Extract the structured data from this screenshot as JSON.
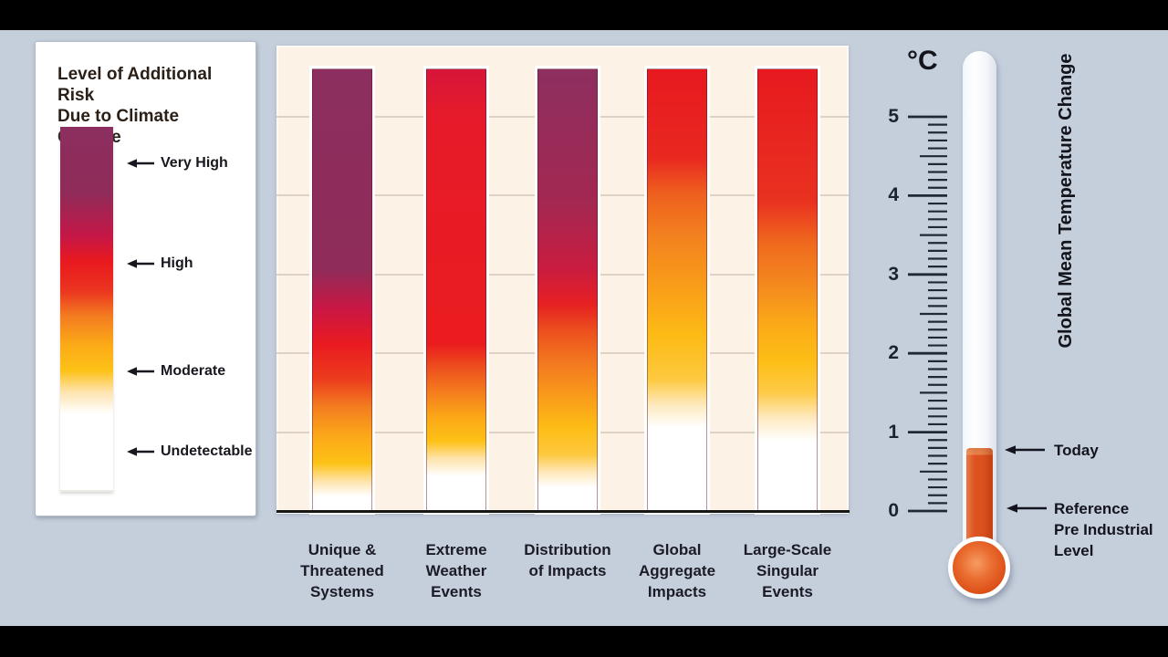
{
  "colors": {
    "background": "#c5cfdc",
    "letterbox": "#000000",
    "panel_cream": "#fcf3e6",
    "gridline": "#ddd2c3",
    "risk_very_high_purple": "#8c2e5f",
    "risk_high_red": "#e91c25",
    "risk_moderate_yellow": "#fdbd15",
    "risk_undetectable_white": "#ffffff",
    "mercury_orange": "#dd5320",
    "text_dark": "#1b1b25"
  },
  "legend": {
    "title": [
      "Level of Additional Risk",
      "Due to Climate Change"
    ],
    "items": [
      {
        "label": "Very High"
      },
      {
        "label": "High"
      },
      {
        "label": "Moderate"
      },
      {
        "label": "Undetectable"
      }
    ],
    "gradient_stops": [
      [
        0,
        "#8c2e5f"
      ],
      [
        18,
        "#8f2c59"
      ],
      [
        30,
        "#c41747"
      ],
      [
        37,
        "#e9191f"
      ],
      [
        45,
        "#eb341f"
      ],
      [
        52,
        "#f37b20"
      ],
      [
        60,
        "#fbaa17"
      ],
      [
        67,
        "#fdc115"
      ],
      [
        73,
        "#fee3ae"
      ],
      [
        79,
        "#ffffff"
      ],
      [
        100,
        "#ffffff"
      ]
    ]
  },
  "chart_data": {
    "type": "bar",
    "title": "Level of Additional Risk Due to Climate Change (burning embers)",
    "ylabel": "Global Mean Temperature Change (°C)",
    "ylim": [
      0,
      5.6
    ],
    "yticks": [
      0,
      1,
      2,
      3,
      4,
      5
    ],
    "grid": true,
    "risk_levels": [
      "Undetectable",
      "Moderate",
      "High",
      "Very High"
    ],
    "categories": [
      "Unique & Threatened Systems",
      "Extreme Weather Events",
      "Distribution of Impacts",
      "Global Aggregate Impacts",
      "Large-Scale Singular Events"
    ],
    "bars": [
      {
        "category": "Unique & Threatened Systems",
        "label_lines": [
          "Unique &",
          "Threatened",
          "Systems"
        ],
        "transitions_degC": {
          "undetectable_to_moderate": 0.3,
          "moderate_to_high": 1.6,
          "high_to_very_high": 2.6
        },
        "bar_top_degC": 5.6,
        "gradient_stops": [
          [
            0,
            "#8c2e5f"
          ],
          [
            45,
            "#8f2c59"
          ],
          [
            54,
            "#c91745"
          ],
          [
            62,
            "#e91a20"
          ],
          [
            70,
            "#ec3c1e"
          ],
          [
            76,
            "#f37b20"
          ],
          [
            83,
            "#fba918"
          ],
          [
            89,
            "#fdc216"
          ],
          [
            93,
            "#fee3a9"
          ],
          [
            96.5,
            "#ffffff"
          ],
          [
            100,
            "#ffffff"
          ]
        ]
      },
      {
        "category": "Extreme Weather Events",
        "label_lines": [
          "Extreme",
          "Weather",
          "Events"
        ],
        "transitions_degC": {
          "undetectable_to_moderate": 0.6,
          "moderate_to_high": 1.5,
          "high_to_very_high": null
        },
        "bar_top_degC": 5.6,
        "gradient_stops": [
          [
            0,
            "#d6163a"
          ],
          [
            10,
            "#e61a2a"
          ],
          [
            62,
            "#ea1c1f"
          ],
          [
            68,
            "#ee551e"
          ],
          [
            74,
            "#f5851d"
          ],
          [
            79,
            "#fbaa16"
          ],
          [
            84,
            "#fdc115"
          ],
          [
            88,
            "#fee3ad"
          ],
          [
            92,
            "#ffffff"
          ],
          [
            100,
            "#ffffff"
          ]
        ]
      },
      {
        "category": "Distribution of Impacts",
        "label_lines": [
          "Distribution",
          "of Impacts"
        ],
        "transitions_degC": {
          "undetectable_to_moderate": 0.5,
          "moderate_to_high": 1.9,
          "high_to_very_high": 2.7
        },
        "bar_top_degC": 5.6,
        "gradient_stops": [
          [
            0,
            "#8d2f5f"
          ],
          [
            30,
            "#a32852"
          ],
          [
            45,
            "#c91c40"
          ],
          [
            53,
            "#e62023"
          ],
          [
            59,
            "#ec4f1e"
          ],
          [
            66,
            "#f2771f"
          ],
          [
            74,
            "#f99c1a"
          ],
          [
            81,
            "#fdbd15"
          ],
          [
            87,
            "#fdc83e"
          ],
          [
            91,
            "#fee8ba"
          ],
          [
            94.5,
            "#ffffff"
          ],
          [
            100,
            "#ffffff"
          ]
        ]
      },
      {
        "category": "Global Aggregate Impacts",
        "label_lines": [
          "Global",
          "Aggregate",
          "Impacts"
        ],
        "transitions_degC": {
          "undetectable_to_moderate": 1.2,
          "moderate_to_high": 3.5,
          "high_to_very_high": null
        },
        "bar_top_degC": 5.6,
        "gradient_stops": [
          [
            0,
            "#e7191f"
          ],
          [
            20,
            "#e92820"
          ],
          [
            28,
            "#ee5f1e"
          ],
          [
            38,
            "#f3821f"
          ],
          [
            50,
            "#f99f19"
          ],
          [
            60,
            "#fdbb15"
          ],
          [
            70,
            "#fdc93f"
          ],
          [
            76,
            "#feeac2"
          ],
          [
            81,
            "#ffffff"
          ],
          [
            100,
            "#ffffff"
          ]
        ]
      },
      {
        "category": "Large-Scale Singular Events",
        "label_lines": [
          "Large-Scale",
          "Singular",
          "Events"
        ],
        "transitions_degC": {
          "undetectable_to_moderate": 1.0,
          "moderate_to_high": 3.0,
          "high_to_very_high": null
        },
        "bar_top_degC": 5.6,
        "gradient_stops": [
          [
            0,
            "#e7191f"
          ],
          [
            30,
            "#e93220"
          ],
          [
            39,
            "#ef681e"
          ],
          [
            49,
            "#f48a1e"
          ],
          [
            58,
            "#fbab17"
          ],
          [
            66,
            "#fdbe15"
          ],
          [
            73,
            "#fdca47"
          ],
          [
            79,
            "#feebc4"
          ],
          [
            84,
            "#ffffff"
          ],
          [
            100,
            "#ffffff"
          ]
        ]
      }
    ]
  },
  "thermometer": {
    "unit": "°C",
    "scale": {
      "min": 0,
      "max": 5,
      "major_step": 1,
      "half_step": 0.5,
      "minor_step": 0.1
    },
    "current_value_degC": 0.8,
    "today_label": "Today",
    "reference_label_lines": [
      "Reference",
      "Pre Industrial",
      "Level"
    ],
    "axis_label": "Global Mean Temperature Change"
  }
}
